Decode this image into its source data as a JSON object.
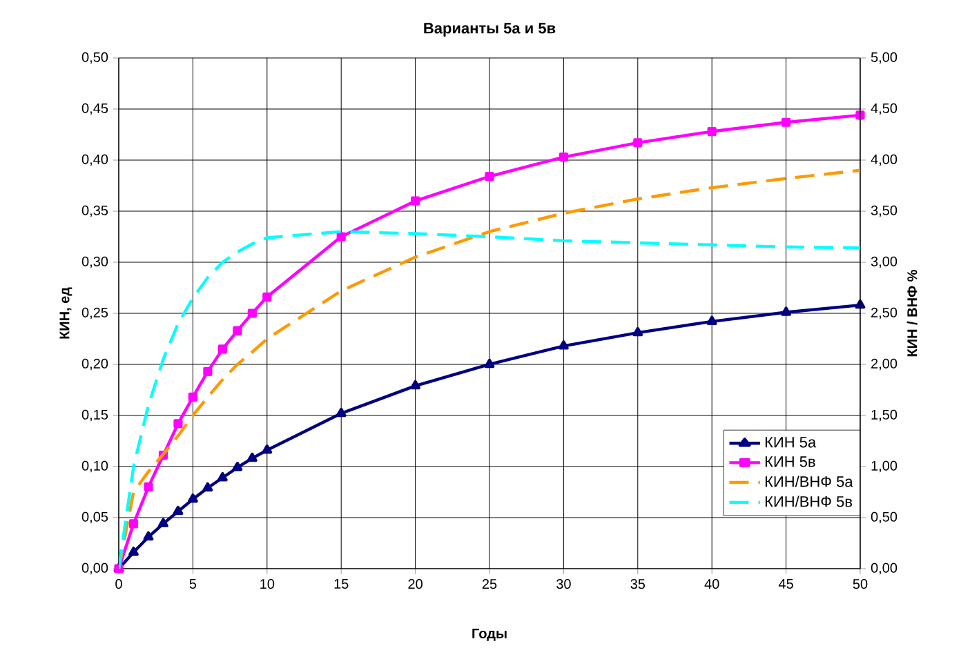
{
  "chart_data": {
    "type": "line",
    "title": "Варианты 5а и 5в",
    "xlabel": "Годы",
    "ylabel": "КИН, ед",
    "y2label": "КИН / ВНФ %",
    "xlim": [
      0,
      50
    ],
    "xticks": [
      0,
      5,
      10,
      15,
      20,
      25,
      30,
      35,
      40,
      45,
      50
    ],
    "ylim": [
      0,
      0.5
    ],
    "yticks": [
      {
        "value": 0,
        "label": "0,00"
      },
      {
        "value": 0.05,
        "label": "0,05"
      },
      {
        "value": 0.1,
        "label": "0,10"
      },
      {
        "value": 0.15,
        "label": "0,15"
      },
      {
        "value": 0.2,
        "label": "0,20"
      },
      {
        "value": 0.25,
        "label": "0,25"
      },
      {
        "value": 0.3,
        "label": "0,30"
      },
      {
        "value": 0.35,
        "label": "0,35"
      },
      {
        "value": 0.4,
        "label": "0,40"
      },
      {
        "value": 0.45,
        "label": "0,45"
      },
      {
        "value": 0.5,
        "label": "0,50"
      }
    ],
    "y2lim": [
      0,
      5
    ],
    "y2ticks": [
      {
        "value": 0,
        "label": "0,00"
      },
      {
        "value": 0.5,
        "label": "0,50"
      },
      {
        "value": 1,
        "label": "1,00"
      },
      {
        "value": 1.5,
        "label": "1,50"
      },
      {
        "value": 2,
        "label": "2,00"
      },
      {
        "value": 2.5,
        "label": "2,50"
      },
      {
        "value": 3,
        "label": "3,00"
      },
      {
        "value": 3.5,
        "label": "3,50"
      },
      {
        "value": 4,
        "label": "4,00"
      },
      {
        "value": 4.5,
        "label": "4,50"
      },
      {
        "value": 5,
        "label": "5,00"
      }
    ],
    "grid": true,
    "legend": "bottom right",
    "series": [
      {
        "name": "КИН 5а",
        "color": "#000080",
        "marker": "triangle",
        "line_style": "solid",
        "x": [
          0,
          1,
          2,
          3,
          4,
          5,
          6,
          7,
          8,
          9,
          10,
          15,
          20,
          25,
          30,
          35,
          40,
          45,
          50
        ],
        "values": [
          0,
          0.016,
          0.031,
          0.044,
          0.056,
          0.068,
          0.079,
          0.089,
          0.099,
          0.108,
          0.116,
          0.152,
          0.179,
          0.2,
          0.218,
          0.231,
          0.242,
          0.251,
          0.258
        ]
      },
      {
        "name": "КИН 5в",
        "color": "#ff00ff",
        "marker": "square",
        "line_style": "solid",
        "x": [
          0,
          1,
          2,
          3,
          4,
          5,
          6,
          7,
          8,
          9,
          10,
          15,
          20,
          25,
          30,
          35,
          40,
          45,
          50
        ],
        "values": [
          0,
          0.044,
          0.08,
          0.111,
          0.142,
          0.168,
          0.193,
          0.215,
          0.233,
          0.25,
          0.266,
          0.325,
          0.36,
          0.384,
          0.403,
          0.417,
          0.428,
          0.437,
          0.444
        ]
      },
      {
        "name": "КИН/ВНФ 5а",
        "color": "#ff9900",
        "axis": "y2",
        "line_style": "dashed",
        "x": [
          0,
          1,
          2,
          3,
          4,
          5,
          6,
          7,
          8,
          9,
          10,
          15,
          20,
          25,
          30,
          35,
          40,
          45,
          50
        ],
        "values": [
          0,
          0.75,
          0.95,
          1.12,
          1.3,
          1.5,
          1.68,
          1.85,
          2.0,
          2.12,
          2.25,
          2.72,
          3.05,
          3.3,
          3.48,
          3.62,
          3.73,
          3.82,
          3.9
        ]
      },
      {
        "name": "КИН/ВНФ 5в",
        "color": "#00ffff",
        "axis": "y2",
        "line_style": "dashed",
        "x": [
          0,
          1,
          2,
          3,
          4,
          5,
          6,
          7,
          8,
          9,
          10,
          15,
          20,
          25,
          30,
          35,
          40,
          45,
          50
        ],
        "values": [
          0,
          1.0,
          1.6,
          2.05,
          2.4,
          2.65,
          2.85,
          3.0,
          3.1,
          3.18,
          3.24,
          3.3,
          3.28,
          3.25,
          3.21,
          3.19,
          3.17,
          3.15,
          3.14
        ]
      }
    ]
  }
}
